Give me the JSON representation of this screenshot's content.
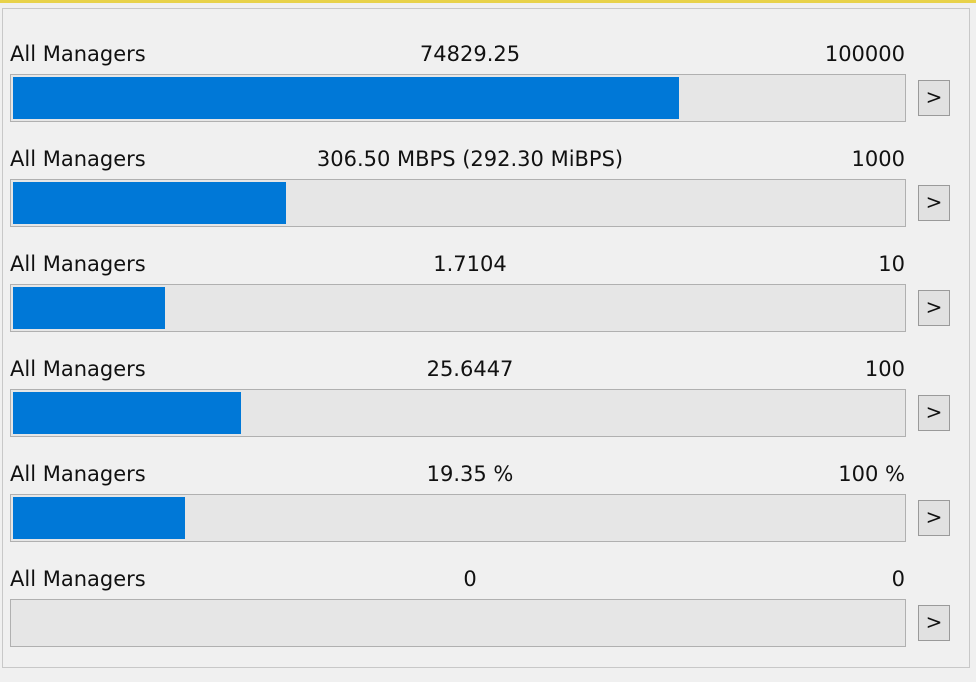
{
  "rows": [
    {
      "label": "All Managers",
      "value": 74829.25,
      "max": 100000,
      "button": ">"
    },
    {
      "label": "All Managers",
      "value": {
        "value": 306.5,
        "label": "306.50 MBPS (292.30 MiBPS)"
      },
      "max": 1000,
      "button": ">"
    },
    {
      "label": "All Managers",
      "value": 1.7104,
      "max": 10,
      "button": ">"
    },
    {
      "label": "All Managers",
      "value": 25.6447,
      "max": 100,
      "button": ">"
    },
    {
      "label": "All Managers",
      "value": {
        "value": 19.35,
        "label": "19.35 %"
      },
      "max": {
        "value": 100,
        "label": "100 %"
      },
      "button": ">"
    },
    {
      "label": "All Managers",
      "value": 0,
      "max": 0,
      "button": ">"
    }
  ]
}
